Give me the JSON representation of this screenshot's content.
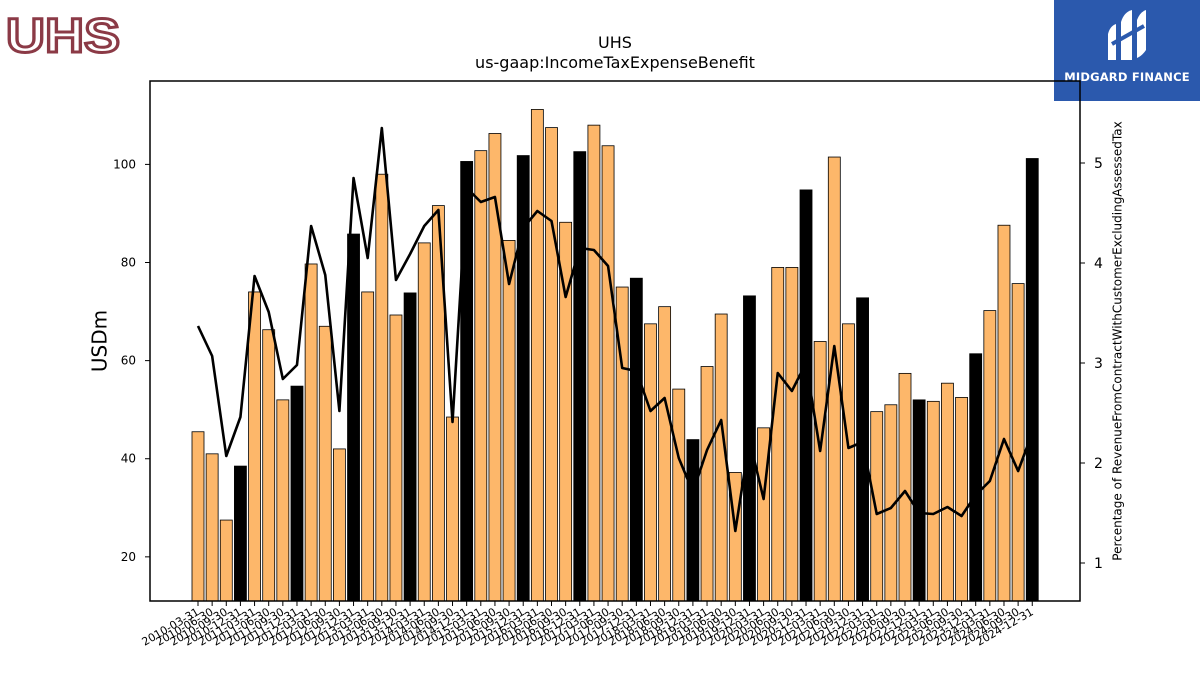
{
  "header": {
    "company_logo_text": "UHS",
    "brand_logo_text": "MIDGARD FINANCE"
  },
  "colors": {
    "bar_normal": "#fdb76a",
    "bar_q4": "#000000",
    "line": "#000000"
  },
  "chart_data": {
    "type": "bar",
    "title": "UHS",
    "subtitle": "us-gaap:IncomeTaxExpenseBenefit",
    "ylabel": "USDm",
    "y2label": "Percentage of RevenueFromContractWithCustomerExcludingAssessedTax",
    "ylim": [
      11,
      117
    ],
    "y2lim": [
      0.62,
      5.82
    ],
    "yticks": [
      20,
      40,
      60,
      80,
      100
    ],
    "y2ticks": [
      1,
      2,
      3,
      4,
      5
    ],
    "grid": false,
    "legend": "none",
    "categories": [
      "2010-03-31",
      "2010-06-30",
      "2010-09-30",
      "2010-12-31",
      "2011-03-31",
      "2011-06-30",
      "2011-09-30",
      "2011-12-31",
      "2012-03-31",
      "2012-06-30",
      "2012-09-30",
      "2012-12-31",
      "2013-03-31",
      "2013-06-30",
      "2013-09-30",
      "2013-12-31",
      "2014-03-31",
      "2014-06-30",
      "2014-09-30",
      "2014-12-31",
      "2015-03-31",
      "2015-06-30",
      "2015-09-30",
      "2015-12-31",
      "2016-03-31",
      "2016-06-30",
      "2016-09-30",
      "2016-12-31",
      "2017-03-31",
      "2017-06-30",
      "2017-09-30",
      "2017-12-31",
      "2018-03-31",
      "2018-06-30",
      "2018-09-30",
      "2018-12-31",
      "2019-03-31",
      "2019-06-30",
      "2019-09-30",
      "2019-12-31",
      "2020-03-31",
      "2020-06-30",
      "2020-09-30",
      "2020-12-31",
      "2021-03-31",
      "2021-06-30",
      "2021-09-30",
      "2021-12-31",
      "2022-03-31",
      "2022-06-30",
      "2022-09-30",
      "2022-12-31",
      "2023-03-31",
      "2023-06-30",
      "2023-09-30",
      "2023-12-31",
      "2024-03-31",
      "2024-06-30",
      "2024-09-30",
      "2024-12-31"
    ],
    "series": [
      {
        "type": "bar",
        "values": [
          45.5,
          41,
          27.5,
          38.5,
          74,
          66.3,
          52,
          54.8,
          79.7,
          67,
          42,
          85.8,
          74,
          98,
          69.3,
          73.8,
          84,
          91.6,
          48.5,
          100.6,
          102.8,
          106.3,
          84.5,
          101.8,
          111.2,
          107.5,
          88.2,
          102.6,
          108,
          103.8,
          75,
          76.8,
          67.5,
          71,
          54.2,
          43.9,
          58.8,
          69.5,
          37.2,
          73.2,
          46.3,
          79,
          79,
          94.8,
          63.9,
          101.5,
          67.5,
          72.8,
          49.6,
          51,
          57.4,
          52,
          51.7,
          55.4,
          52.5,
          61.4,
          70.2,
          87.6,
          75.7,
          101.2
        ]
      },
      {
        "type": "line",
        "axis": "right",
        "values": [
          3.37,
          3.07,
          2.07,
          2.46,
          3.87,
          3.51,
          2.84,
          2.98,
          4.37,
          3.88,
          2.52,
          4.85,
          4.05,
          5.35,
          3.83,
          4.09,
          4.37,
          4.53,
          2.41,
          4.75,
          4.61,
          4.66,
          3.79,
          4.35,
          4.52,
          4.42,
          3.66,
          4.15,
          4.13,
          3.97,
          2.95,
          2.92,
          2.52,
          2.65,
          2.05,
          1.71,
          2.13,
          2.43,
          1.32,
          2.23,
          1.64,
          2.9,
          2.72,
          3.0,
          2.12,
          3.17,
          2.15,
          2.21,
          1.49,
          1.55,
          1.72,
          1.5,
          1.49,
          1.56,
          1.47,
          1.68,
          1.82,
          2.24,
          1.92,
          2.3
        ]
      }
    ]
  }
}
